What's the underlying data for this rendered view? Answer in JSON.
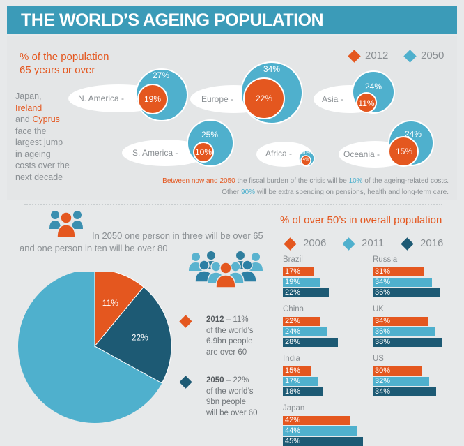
{
  "header": {
    "title": "THE WORLD’S AGEING POPULATION"
  },
  "colors": {
    "orange": "#e4571f",
    "light_blue": "#4fb0cd",
    "dark_blue": "#1d5a74",
    "mid_blue": "#3b9bb8"
  },
  "top_section": {
    "title_line1": "% of the population",
    "title_line2": "65 years or over",
    "legend": [
      {
        "year": "2012",
        "color": "#e4571f"
      },
      {
        "year": "2050",
        "color": "#4fb0cd"
      }
    ],
    "side_text": {
      "line1": "Japan,",
      "ireland": "Ireland",
      "and": "and ",
      "cyprus": "Cyprus",
      "rest": "face the largest jump in ageing costs over the next decade"
    },
    "regions": [
      {
        "label": "N. America -",
        "v2012": "19%",
        "v2050": "27%"
      },
      {
        "label": "Europe -",
        "v2012": "22%",
        "v2050": "34%"
      },
      {
        "label": "Asia -",
        "v2012": "11%",
        "v2050": "24%"
      },
      {
        "label": "S. America -",
        "v2012": "10%",
        "v2050": "25%"
      },
      {
        "label": "Africa -",
        "v2012": "4%",
        "v2050": "10%"
      },
      {
        "label": "Oceania -",
        "v2012": "15%",
        "v2050": "24%"
      }
    ],
    "note": {
      "l1a": "Between now and 2050",
      "l1b": " the fiscal burden of the crisis will be ",
      "l1c": "10%",
      "l1d": " of the ageing-related costs.",
      "l2a": "Other ",
      "l2b": "90%",
      "l2c": " will be extra spending on pensions, health and long-term care."
    }
  },
  "pie_section": {
    "intro_line1": "In 2050 one person in three will be over 65",
    "intro_line2": "and one person in ten will be over 80",
    "slices": [
      {
        "label": "11%",
        "value": 11,
        "color": "#e4571f"
      },
      {
        "label": "22%",
        "value": 22,
        "color": "#1d5a74"
      }
    ],
    "notes": [
      {
        "year": "2012",
        "text1": " – 11%",
        "text2": "of the world’s",
        "text3": "6.9bn people",
        "text4": "are over 60"
      },
      {
        "year": "2050",
        "text1": " – 22%",
        "text2": "of the world’s",
        "text3": "9bn people",
        "text4": "will be over 60"
      }
    ]
  },
  "chart_data": {
    "type": "bar",
    "title": "% of over 50’s in overall population",
    "series_names": [
      "2006",
      "2011",
      "2016"
    ],
    "series_colors": [
      "#e4571f",
      "#4fb0cd",
      "#1d5a74"
    ],
    "countries": [
      {
        "name": "Brazil",
        "values": [
          17,
          19,
          22
        ],
        "labels": [
          "17%",
          "19%",
          "22%"
        ]
      },
      {
        "name": "China",
        "values": [
          22,
          24,
          28
        ],
        "labels": [
          "22%",
          "24%",
          "28%"
        ]
      },
      {
        "name": "India",
        "values": [
          15,
          17,
          18
        ],
        "labels": [
          "15%",
          "17%",
          "18%"
        ]
      },
      {
        "name": "Japan",
        "values": [
          42,
          44,
          45
        ],
        "labels": [
          "42%",
          "44%",
          "45%"
        ]
      },
      {
        "name": "Russia",
        "values": [
          31,
          34,
          36
        ],
        "labels": [
          "31%",
          "34%",
          "36%"
        ]
      },
      {
        "name": "UK",
        "values": [
          34,
          36,
          38
        ],
        "labels": [
          "34%",
          "36%",
          "38%"
        ]
      },
      {
        "name": "US",
        "values": [
          30,
          32,
          34
        ],
        "labels": [
          "30%",
          "32%",
          "34%"
        ]
      }
    ]
  }
}
